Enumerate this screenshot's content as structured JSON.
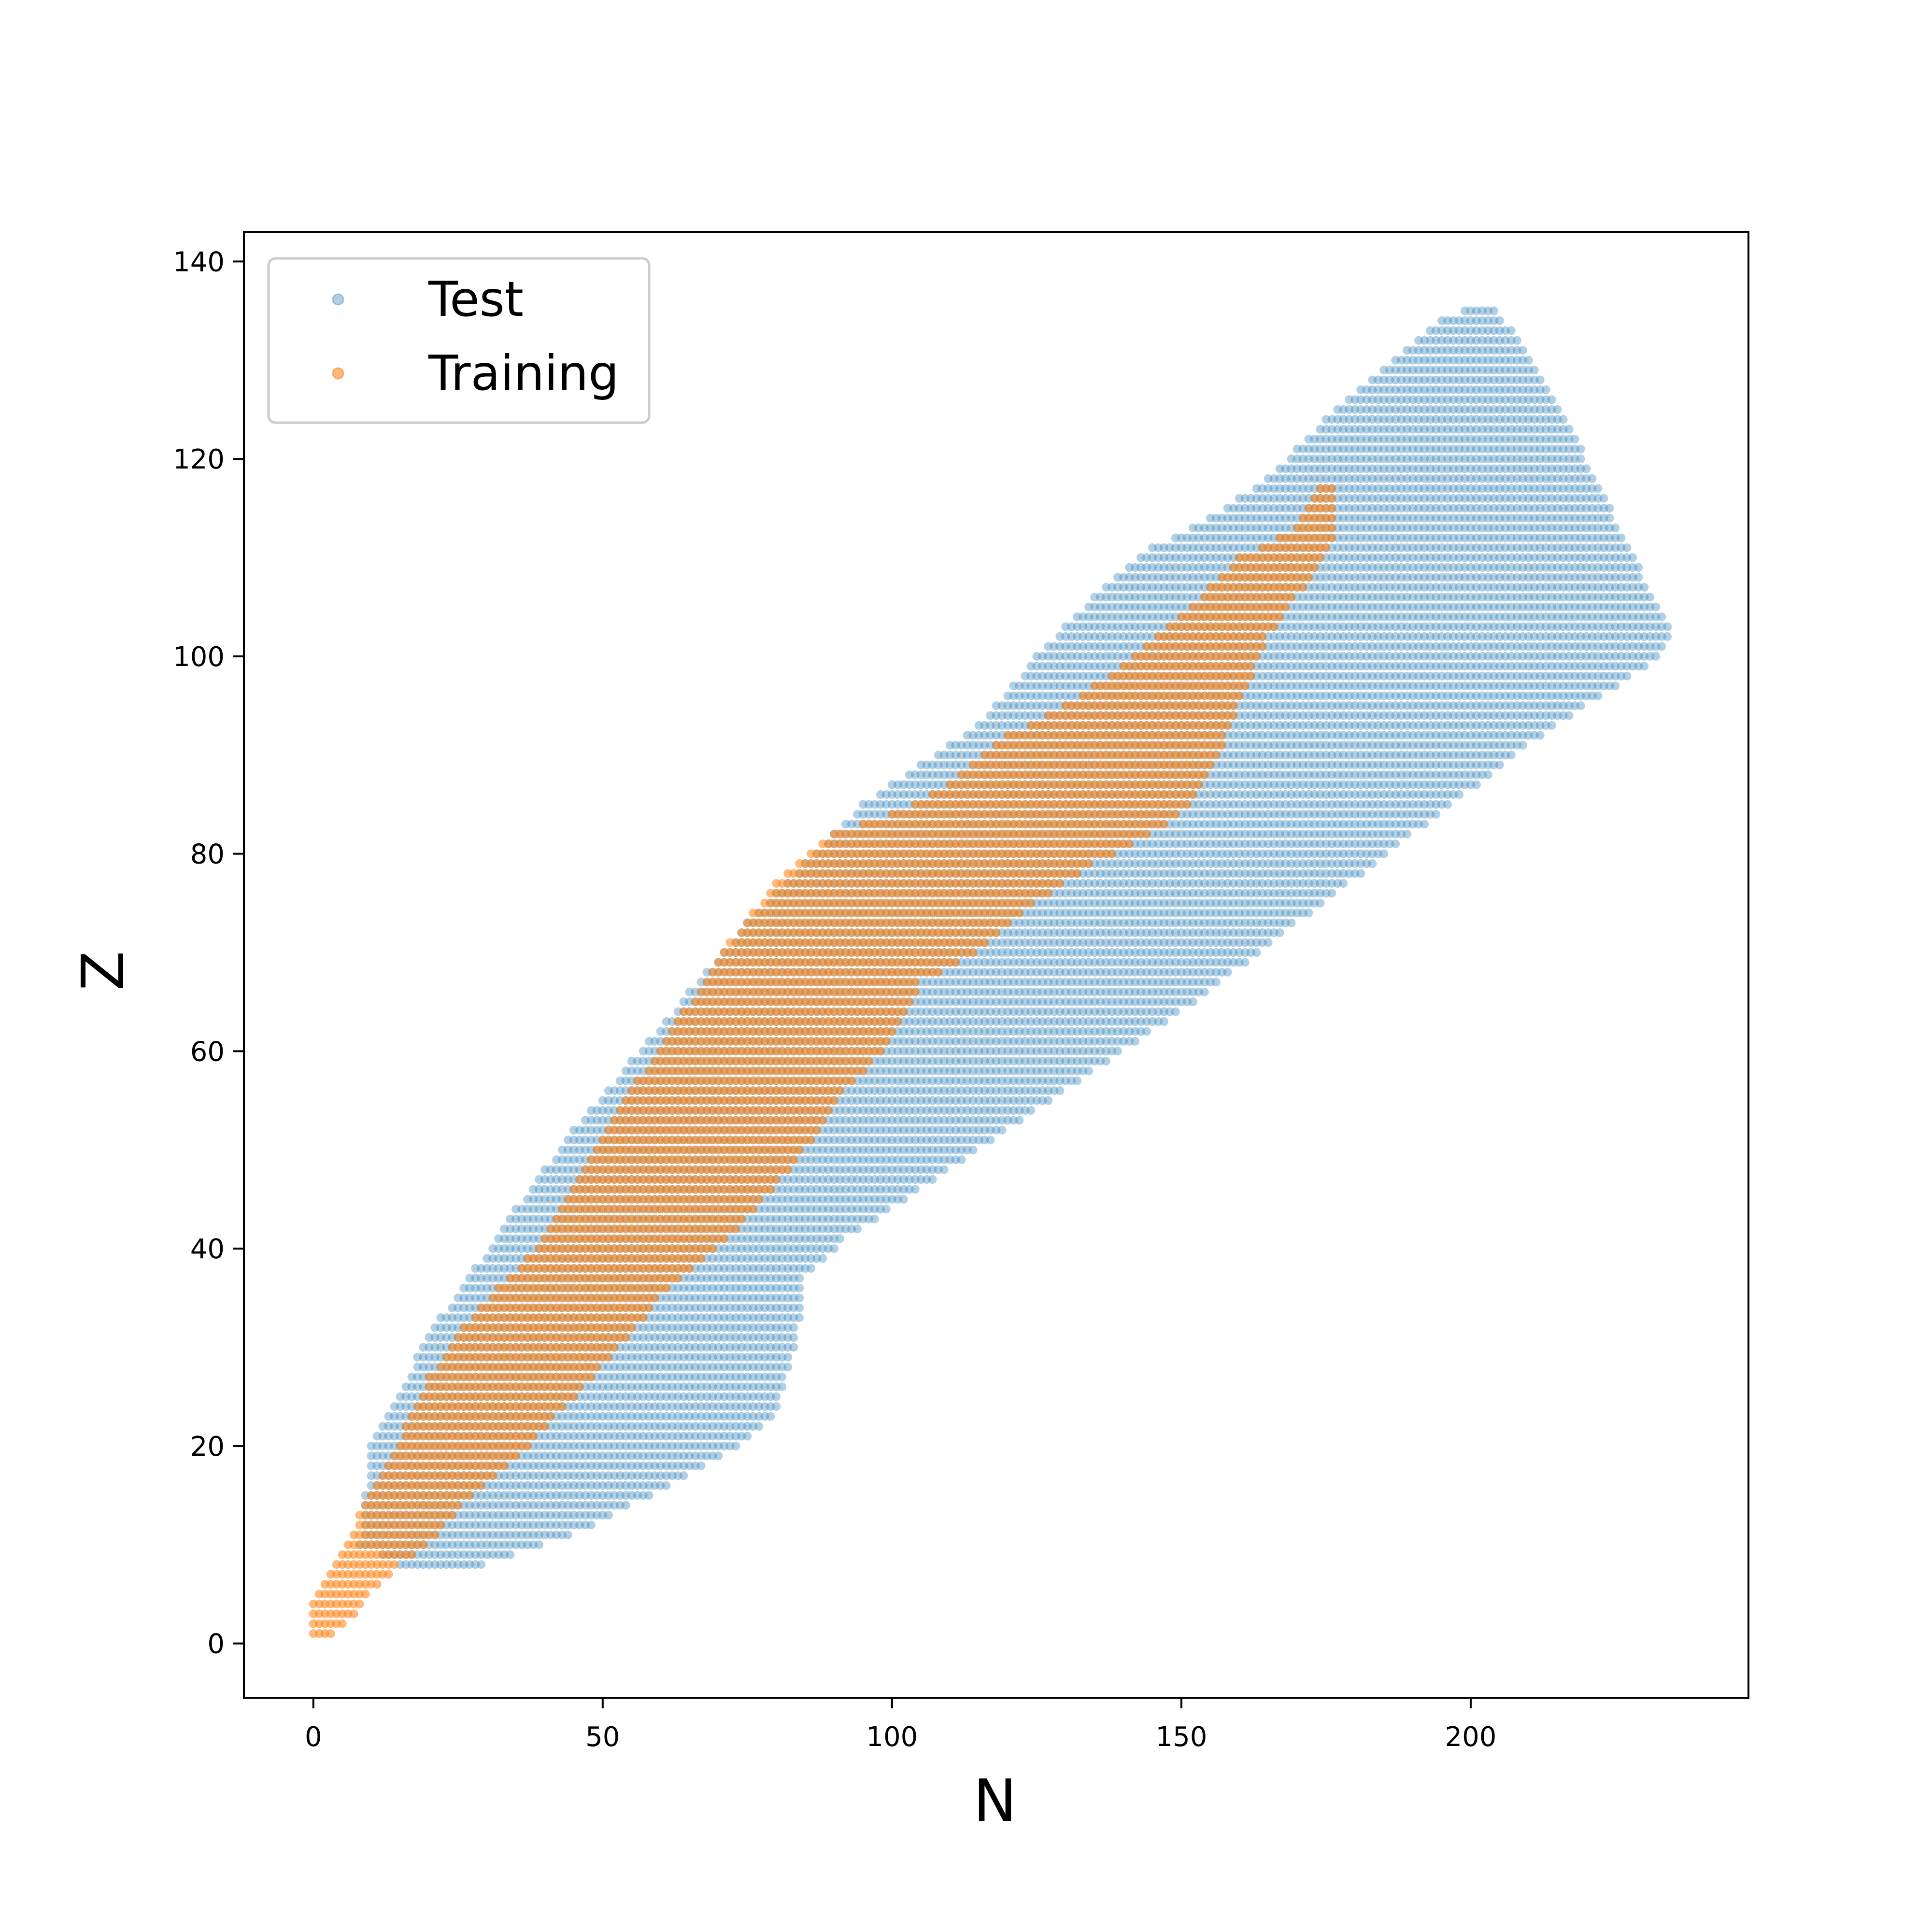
{
  "chart_data": {
    "type": "scatter",
    "xlabel": "N",
    "ylabel": "Z",
    "xlim": [
      -12,
      248
    ],
    "ylim": [
      -5.5,
      143
    ],
    "xticks": [
      0,
      50,
      100,
      150,
      200
    ],
    "yticks": [
      0,
      20,
      40,
      60,
      80,
      100,
      120,
      140
    ],
    "grid": false,
    "legend": "upper-left",
    "series": [
      {
        "name": "Test",
        "color": "#1f77b4",
        "alpha": 0.35,
        "marker": "circle",
        "region_boundary": [
          [
            8,
            10
          ],
          [
            10,
            20
          ],
          [
            14,
            24
          ],
          [
            18,
            29
          ],
          [
            22,
            33
          ],
          [
            28,
            38
          ],
          [
            35,
            44
          ],
          [
            45,
            52
          ],
          [
            55,
            59
          ],
          [
            65,
            66
          ],
          [
            75,
            73
          ],
          [
            85,
            79
          ],
          [
            95,
            85
          ],
          [
            105,
            89
          ],
          [
            115,
            93
          ],
          [
            125,
            100
          ],
          [
            135,
            106
          ],
          [
            145,
            111
          ],
          [
            155,
            114
          ],
          [
            165,
            118
          ],
          [
            175,
            124
          ],
          [
            185,
            129
          ],
          [
            195,
            134
          ],
          [
            203,
            136
          ],
          [
            210,
            131
          ],
          [
            220,
            120
          ],
          [
            230,
            108
          ],
          [
            235,
            102
          ],
          [
            233,
            100
          ],
          [
            220,
            95
          ],
          [
            210,
            91
          ],
          [
            190,
            82
          ],
          [
            170,
            73
          ],
          [
            150,
            64
          ],
          [
            130,
            56
          ],
          [
            110,
            48
          ],
          [
            92,
            41
          ],
          [
            85,
            37
          ],
          [
            84,
            32
          ],
          [
            82,
            27
          ],
          [
            80,
            23
          ],
          [
            74,
            20
          ],
          [
            65,
            17
          ],
          [
            55,
            14
          ],
          [
            45,
            11
          ],
          [
            35,
            9
          ],
          [
            30,
            8
          ],
          [
            20,
            8
          ],
          [
            15,
            8
          ]
        ]
      },
      {
        "name": "Training",
        "color": "#ff7f0e",
        "alpha": 0.55,
        "marker": "circle",
        "region_boundary": [
          [
            0,
            1
          ],
          [
            0,
            4
          ],
          [
            4,
            8
          ],
          [
            8,
            13
          ],
          [
            12,
            17
          ],
          [
            16,
            22
          ],
          [
            20,
            27
          ],
          [
            26,
            32
          ],
          [
            32,
            36
          ],
          [
            40,
            41
          ],
          [
            48,
            49
          ],
          [
            56,
            57
          ],
          [
            64,
            64
          ],
          [
            72,
            71
          ],
          [
            80,
            77
          ],
          [
            90,
            82
          ],
          [
            100,
            84
          ],
          [
            110,
            87
          ],
          [
            120,
            92
          ],
          [
            130,
            95
          ],
          [
            140,
            99
          ],
          [
            150,
            104
          ],
          [
            160,
            110
          ],
          [
            170,
            113
          ],
          [
            174,
            118
          ],
          [
            177,
            118
          ],
          [
            177,
            112
          ],
          [
            170,
            106
          ],
          [
            165,
            102
          ],
          [
            160,
            95
          ],
          [
            155,
            88
          ],
          [
            150,
            84
          ],
          [
            142,
            81
          ],
          [
            135,
            79
          ],
          [
            125,
            75
          ],
          [
            115,
            70
          ],
          [
            105,
            67
          ],
          [
            100,
            61
          ],
          [
            92,
            56
          ],
          [
            85,
            50
          ],
          [
            78,
            45
          ],
          [
            70,
            40
          ],
          [
            60,
            35
          ],
          [
            50,
            28
          ],
          [
            42,
            23
          ],
          [
            34,
            18
          ],
          [
            26,
            14
          ],
          [
            20,
            10
          ],
          [
            15,
            8
          ],
          [
            10,
            5
          ],
          [
            6,
            2
          ],
          [
            4,
            1
          ]
        ]
      }
    ]
  }
}
